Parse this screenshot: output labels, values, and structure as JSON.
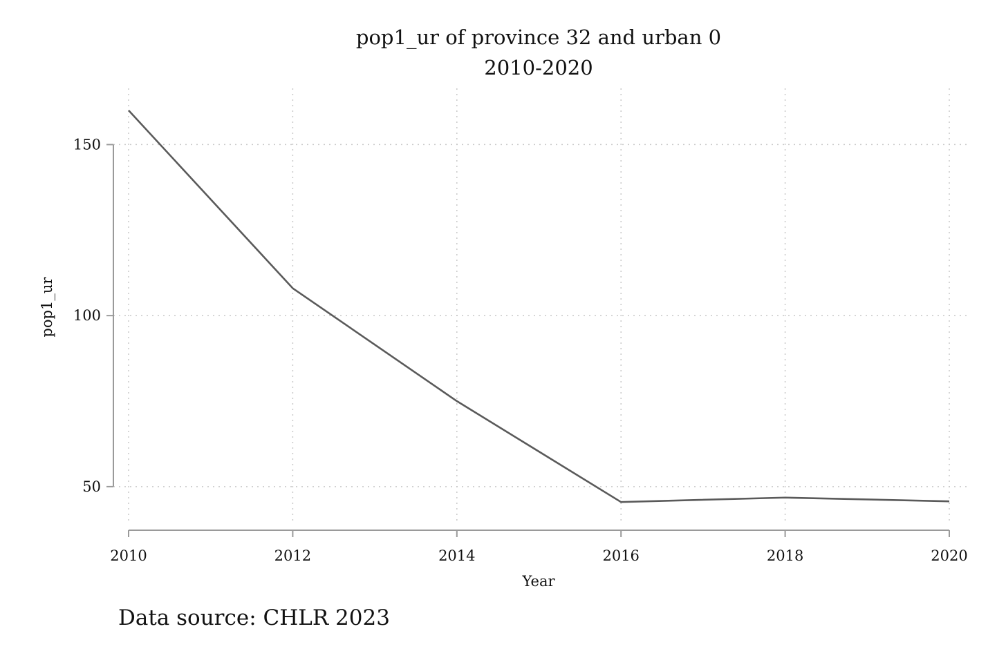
{
  "chart_data": {
    "type": "line",
    "title": "pop1_ur of province 32 and urban 0",
    "subtitle": "2010-2020",
    "xlabel": "Year",
    "ylabel": "pop1_ur",
    "x": [
      2010,
      2012,
      2014,
      2016,
      2018,
      2020
    ],
    "series": [
      {
        "values": [
          160.0,
          108.0,
          75.0,
          45.5,
          46.8,
          45.7
        ]
      }
    ],
    "x_ticks": [
      "2010",
      "2012",
      "2014",
      "2016",
      "2018",
      "2020"
    ],
    "y_ticks": [
      "50",
      "100",
      "150"
    ],
    "xlim": [
      2010,
      2020
    ],
    "ylim": [
      41.5,
      163
    ],
    "grid": true,
    "line_color": "#5a5a5a",
    "note": "Data source: CHLR 2023"
  }
}
